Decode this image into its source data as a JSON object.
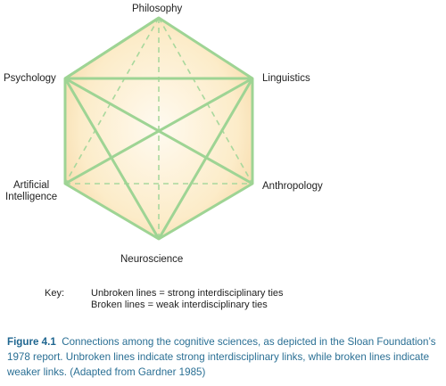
{
  "nodes": {
    "philosophy": "Philosophy",
    "psychology": "Psychology",
    "linguistics": "Linguistics",
    "ai_line1": "Artificial",
    "ai_line2": "Intelligence",
    "anthropology": "Anthropology",
    "neuroscience": "Neuroscience"
  },
  "key": {
    "title": "Key:",
    "unbroken": "Unbroken lines = strong interdisciplinary ties",
    "broken": "Broken lines = weak interdisciplinary ties"
  },
  "caption": {
    "label": "Figure 4.1",
    "text": "Connections among the cognitive sciences, as depicted in the Sloan Foundation’s 1978 report. Unbroken lines indicate strong interdisciplinary links, while broken lines indicate weaker links. (Adapted from Gardner 1985)"
  },
  "colors": {
    "line": "#9ed494",
    "fill_center": "#fff7df",
    "fill_edge": "#f7ddb0",
    "caption": "#2a6f94"
  }
}
